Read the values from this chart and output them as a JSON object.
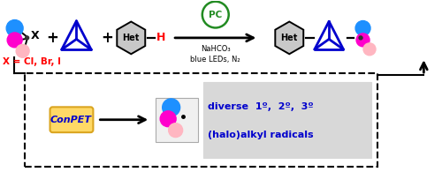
{
  "bg_color": "#ffffff",
  "pink_light": "#FFB6C1",
  "pink_mid": "#FF69B4",
  "magenta_color": "#FF00CC",
  "blue_color": "#1E90FF",
  "dark_blue": "#0000CD",
  "red_color": "#FF0000",
  "green_color": "#228B22",
  "black": "#000000",
  "yellow_bg": "#FFD966",
  "yellow_border": "#DAA520",
  "gray_face": "#C8C8C8",
  "light_gray": "#D8D8D8",
  "conpet_text": "ConPET",
  "pc_text": "PC",
  "x_label": "X = Cl, Br, I",
  "diverse_text": "diverse  1º,  2º,  3º",
  "halo_text": "(halo)alkyl radicals",
  "het_text": "Het",
  "x_text": "X",
  "nahco3": "NaHCO₃",
  "blue_leds": "blue LEDs, N₂"
}
